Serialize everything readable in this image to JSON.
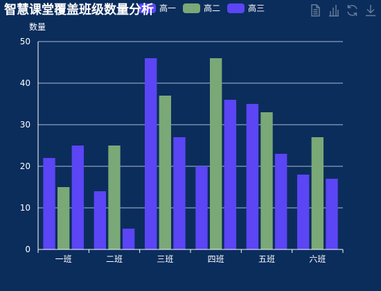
{
  "toolbox": {
    "icons": [
      "data-view-icon",
      "bar-chart-icon",
      "refresh-icon",
      "download-icon"
    ]
  },
  "chart_data": {
    "type": "bar",
    "title": "智慧课堂覆盖班级数量分析",
    "ylabel": "数量",
    "xlabel": "",
    "categories": [
      "一班",
      "二班",
      "三班",
      "四班",
      "五班",
      "六班"
    ],
    "series": [
      {
        "name": "高一",
        "color": "#5b45f5",
        "values": [
          22,
          14,
          46,
          20,
          35,
          18
        ]
      },
      {
        "name": "高二",
        "color": "#7ba877",
        "values": [
          15,
          25,
          37,
          46,
          33,
          27
        ]
      },
      {
        "name": "高三",
        "color": "#5b45f5",
        "values": [
          25,
          5,
          27,
          36,
          23,
          17
        ]
      }
    ],
    "ylim": [
      0,
      50
    ],
    "yticks": [
      0,
      10,
      20,
      30,
      40,
      50
    ],
    "grid": true,
    "legend_position": "top-center"
  }
}
